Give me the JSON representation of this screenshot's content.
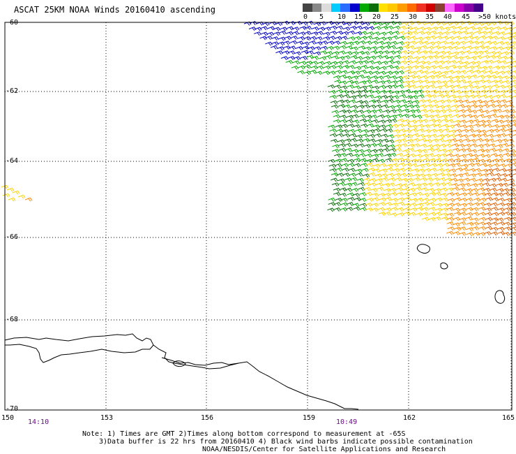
{
  "title": "ASCAT 25KM NOAA Winds 20160410 ascending",
  "colorbar": {
    "colors": [
      "#444444",
      "#888888",
      "#dcdcdc",
      "#00ccff",
      "#2a6cff",
      "#0000cc",
      "#00aa00",
      "#0b6e0b",
      "#ffe000",
      "#ffc800",
      "#ff9c00",
      "#ff6a00",
      "#f03020",
      "#d00000",
      "#8a4030",
      "#ff66ff",
      "#cc00cc",
      "#8800aa",
      "#440088"
    ],
    "labels": [
      "0",
      "5",
      "10",
      "15",
      "20",
      "25",
      "30",
      "35",
      "40",
      "45",
      ">50 knots"
    ],
    "label_order_note": ""
  },
  "lat_labels": [
    "-60",
    "-62",
    "-64",
    "-66",
    "-68",
    "-70"
  ],
  "lon_labels": [
    "150",
    "153",
    "156",
    "159",
    "162",
    "165"
  ],
  "times": [
    "14:10",
    "10:49"
  ],
  "notes": [
    "Note: 1) Times are GMT 2)Times along bottom correspond to measurement at -65S",
    "3)Data buffer is 22 hrs from 20160410 4) Black wind barbs indicate possible contamination",
    "NOAA/NESDIS/Center for Satellite Applications and Research"
  ],
  "wind_colors": {
    "blue": "#0000cc",
    "green": "#00aa00",
    "darkgreen": "#0b6e0b",
    "yellow": "#ffd400",
    "orange": "#ff8c00",
    "darkorange": "#e06000"
  }
}
